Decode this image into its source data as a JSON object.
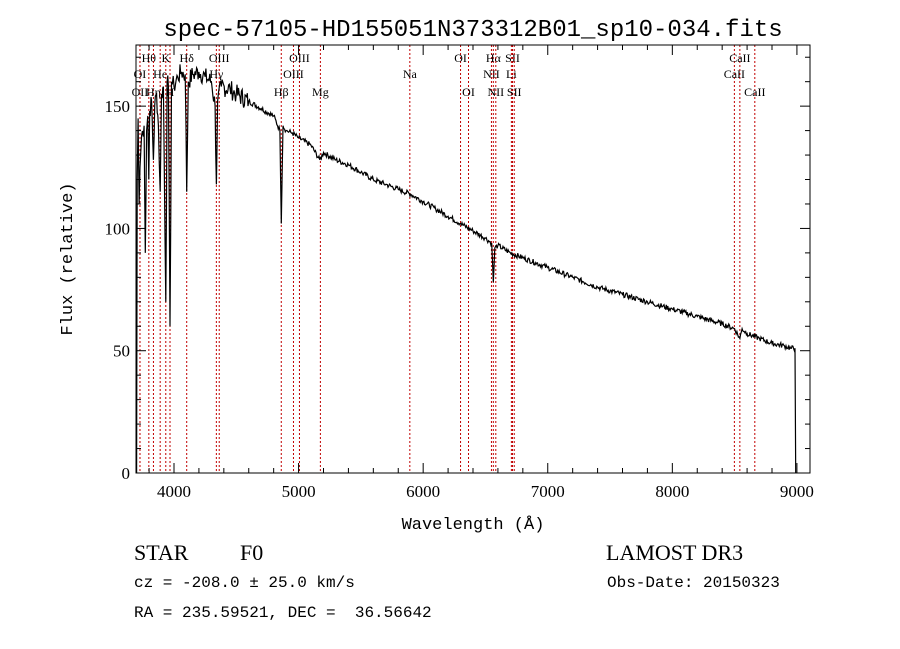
{
  "chart_data": {
    "type": "line",
    "title": "spec-57105-HD155051N373312B01_sp10-034.fits",
    "xlabel": "Wavelength (Å)",
    "ylabel": "Flux (relative)",
    "xlim": [
      3695,
      9105
    ],
    "ylim": [
      0,
      175
    ],
    "xticks": [
      4000,
      5000,
      6000,
      7000,
      8000,
      9000
    ],
    "yticks": [
      0,
      50,
      100,
      150
    ],
    "grid": false,
    "series": [
      {
        "name": "spectrum",
        "x": [
          3700,
          3705,
          3712,
          3720,
          3727,
          3740,
          3760,
          3770,
          3780,
          3790,
          3798,
          3805,
          3820,
          3835,
          3845,
          3860,
          3875,
          3889,
          3900,
          3915,
          3934,
          3945,
          3955,
          3968,
          3980,
          4000,
          4030,
          4060,
          4090,
          4102,
          4115,
          4150,
          4200,
          4250,
          4300,
          4330,
          4340,
          4350,
          4380,
          4450,
          4500,
          4600,
          4700,
          4800,
          4850,
          4861,
          4875,
          4900,
          4950,
          5000,
          5100,
          5170,
          5200,
          5300,
          5400,
          5500,
          5600,
          5700,
          5800,
          5900,
          6000,
          6100,
          6200,
          6300,
          6400,
          6500,
          6550,
          6563,
          6575,
          6600,
          6700,
          6800,
          6900,
          7000,
          7200,
          7400,
          7600,
          7800,
          8000,
          8200,
          8400,
          8500,
          8542,
          8560,
          8600,
          8700,
          8800,
          8900,
          8950,
          8985,
          8990
        ],
        "y": [
          0,
          120,
          145,
          110,
          125,
          138,
          142,
          90,
          140,
          146,
          120,
          148,
          152,
          128,
          150,
          155,
          142,
          115,
          155,
          158,
          70,
          160,
          158,
          60,
          160,
          158,
          162,
          164,
          163,
          115,
          160,
          163,
          164,
          162,
          160,
          150,
          118,
          152,
          158,
          157,
          155,
          152,
          149,
          146,
          140,
          102,
          142,
          140,
          139,
          137,
          134,
          128,
          131,
          128,
          126,
          123,
          120,
          118,
          116,
          114,
          111,
          108,
          105,
          102,
          99,
          96,
          94,
          78,
          92,
          93,
          90,
          88,
          86,
          84,
          80,
          76,
          73,
          70,
          67,
          64,
          61,
          59,
          55,
          59,
          57,
          55,
          53,
          52,
          51,
          51,
          0
        ]
      }
    ],
    "line_markers": [
      {
        "label": "OII",
        "wavelength": 3727,
        "row": 3
      },
      {
        "label": "Hθ",
        "wavelength": 3798,
        "row": 1
      },
      {
        "label": "OI",
        "wavelength": 3727,
        "row": 2
      },
      {
        "label": "Hη",
        "wavelength": 3835,
        "row": 3
      },
      {
        "label": "He",
        "wavelength": 3889,
        "row": 2
      },
      {
        "label": "K",
        "wavelength": 3934,
        "row": 1
      },
      {
        "label": "H",
        "wavelength": 3968,
        "row": 3
      },
      {
        "label": "Hδ",
        "wavelength": 4102,
        "row": 1
      },
      {
        "label": "Hγ",
        "wavelength": 4340,
        "row": 2
      },
      {
        "label": "OIII",
        "wavelength": 4363,
        "row": 1
      },
      {
        "label": "Hβ",
        "wavelength": 4861,
        "row": 3
      },
      {
        "label": "OIII",
        "wavelength": 4959,
        "row": 2
      },
      {
        "label": "OIII",
        "wavelength": 5007,
        "row": 1
      },
      {
        "label": "Mg",
        "wavelength": 5175,
        "row": 3
      },
      {
        "label": "Na",
        "wavelength": 5893,
        "row": 2
      },
      {
        "label": "OI",
        "wavelength": 6300,
        "row": 1
      },
      {
        "label": "OI",
        "wavelength": 6364,
        "row": 3
      },
      {
        "label": "NII",
        "wavelength": 6548,
        "row": 2
      },
      {
        "label": "Hα",
        "wavelength": 6563,
        "row": 1
      },
      {
        "label": "NII",
        "wavelength": 6583,
        "row": 3
      },
      {
        "label": "Li",
        "wavelength": 6708,
        "row": 2
      },
      {
        "label": "SII",
        "wavelength": 6717,
        "row": 1
      },
      {
        "label": "SII",
        "wavelength": 6731,
        "row": 3
      },
      {
        "label": "CaII",
        "wavelength": 8498,
        "row": 2
      },
      {
        "label": "CaII",
        "wavelength": 8542,
        "row": 1
      },
      {
        "label": "CaII",
        "wavelength": 8662,
        "row": 3
      }
    ],
    "marker_color": "#c00000"
  },
  "info": {
    "class": "STAR",
    "subclass": "F0",
    "survey": "LAMOST DR3",
    "cz": "cz = -208.0 ± 25.0 km/s",
    "obs_date": "Obs-Date: 20150323",
    "coords": "RA = 235.59521, DEC =  36.56642"
  }
}
